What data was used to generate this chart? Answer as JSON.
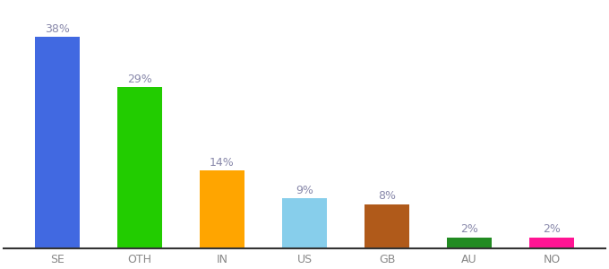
{
  "categories": [
    "SE",
    "OTH",
    "IN",
    "US",
    "GB",
    "AU",
    "NO"
  ],
  "values": [
    38,
    29,
    14,
    9,
    8,
    2,
    2
  ],
  "bar_colors": [
    "#4169e1",
    "#22cc00",
    "#ffa500",
    "#87ceeb",
    "#b05a1a",
    "#228b22",
    "#ff1493"
  ],
  "label_color": "#8888aa",
  "tick_color": "#888888",
  "ylim": [
    0,
    44
  ],
  "label_fontsize": 9,
  "tick_fontsize": 9,
  "background_color": "#ffffff",
  "bar_width": 0.55
}
